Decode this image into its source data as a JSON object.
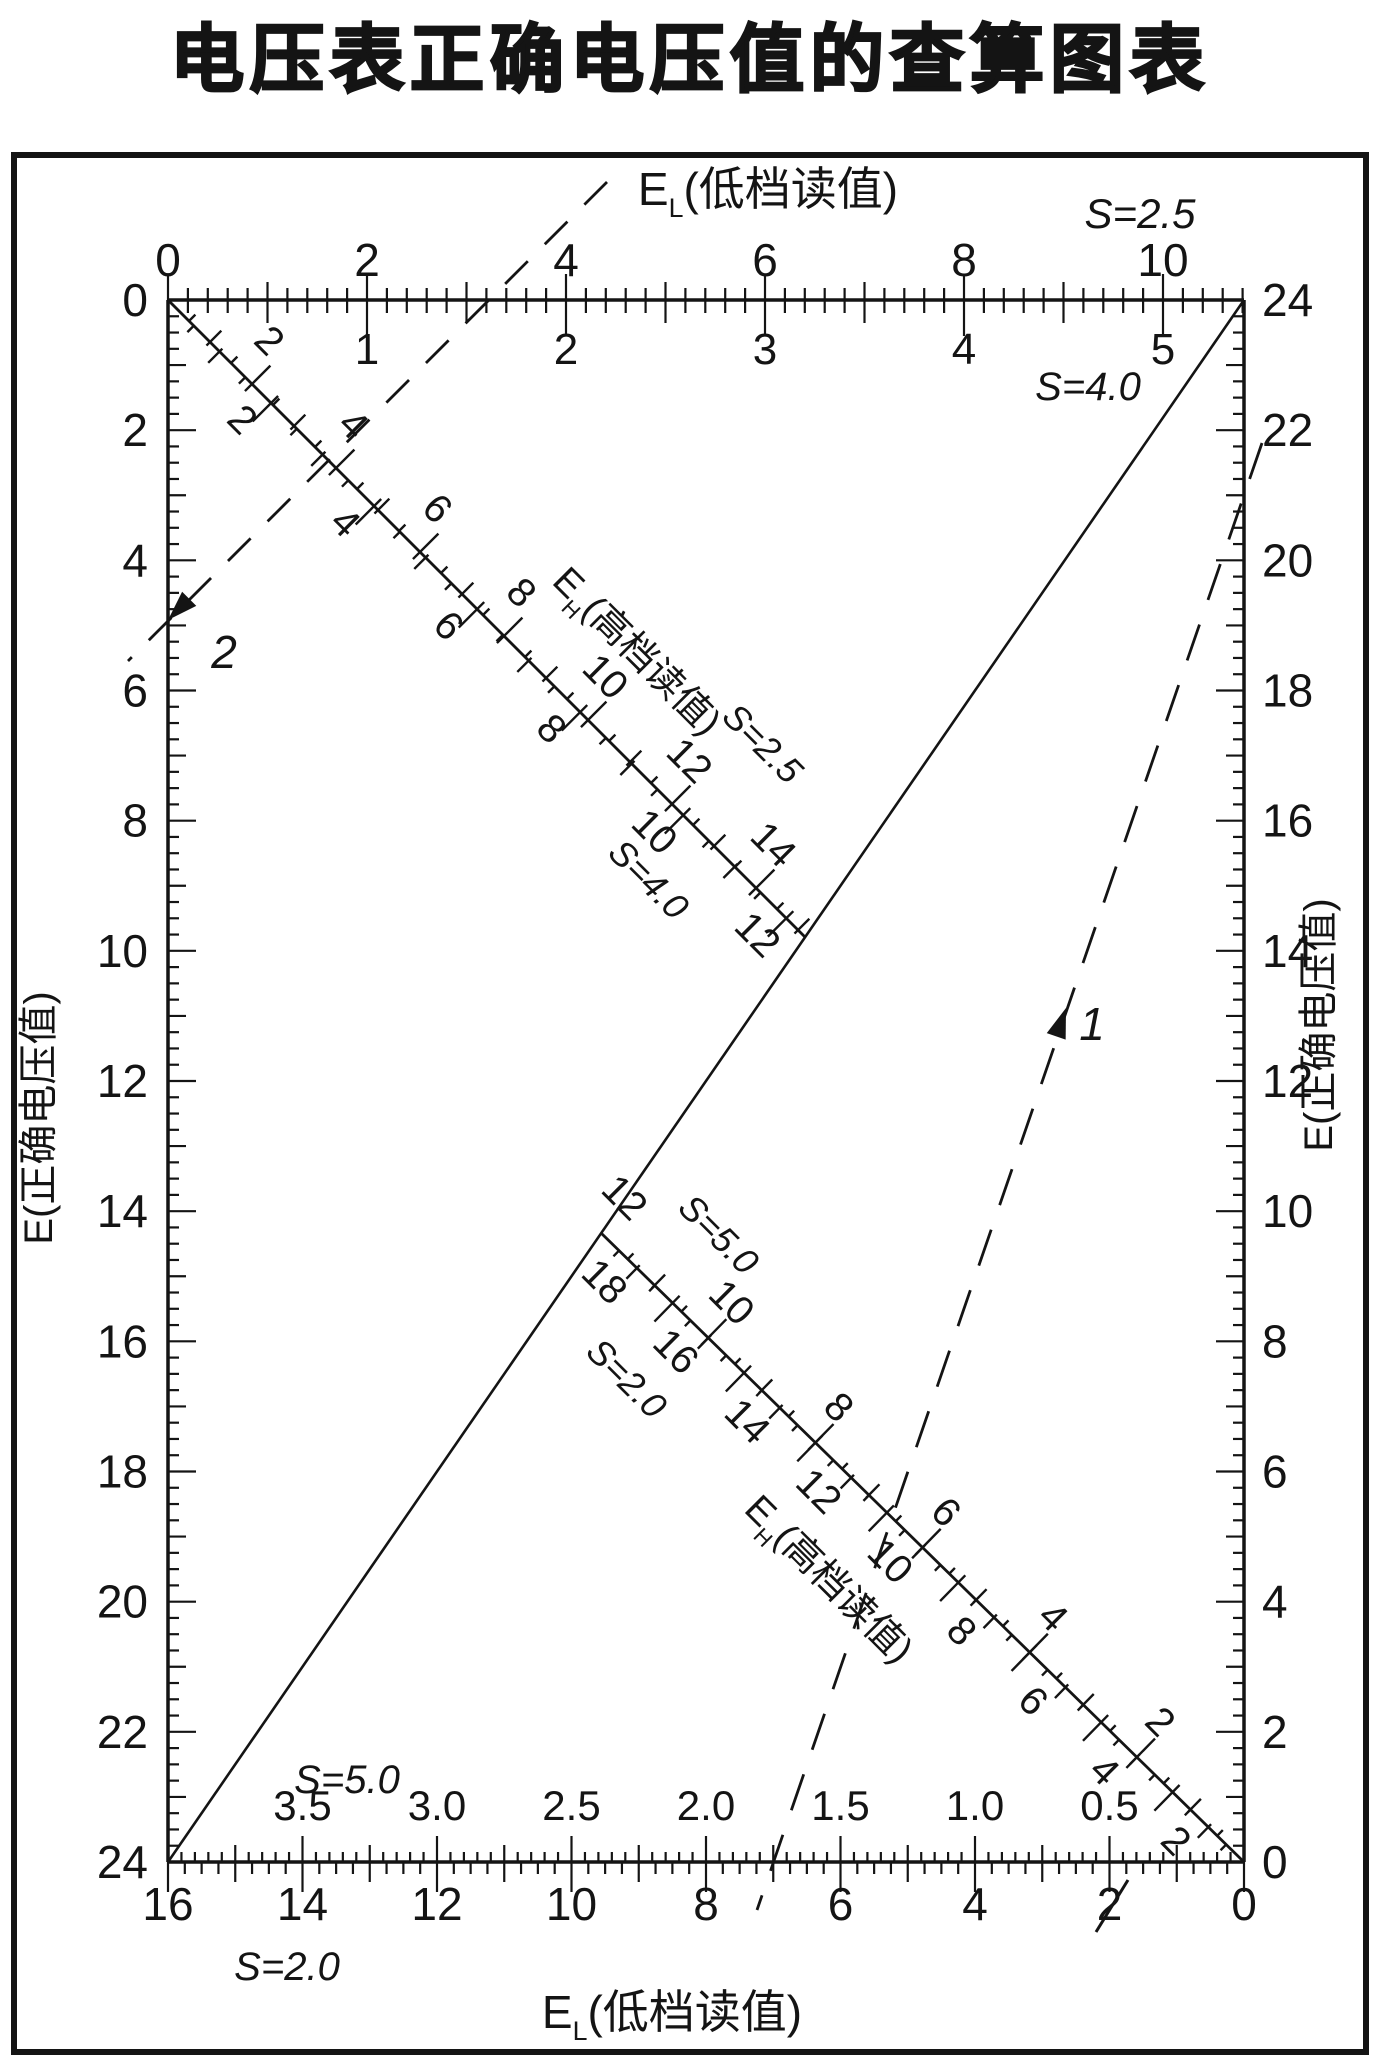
{
  "colors": {
    "ink": "#141414",
    "paper": "#ffffff"
  },
  "chart_data": {
    "type": "nomogram",
    "title": "电压表正确电压值的查算图表",
    "axes": {
      "top": {
        "title": {
          "base": "E",
          "sub": "L",
          "rest": "(低档读值)"
        },
        "scale_label": "S=2.5",
        "tick_labels": [
          "0",
          "2",
          "4",
          "6",
          "8",
          "10"
        ],
        "secondary_scale_label": "S=4.0",
        "secondary_tick_labels": [
          "1",
          "2",
          "3",
          "4",
          "5"
        ]
      },
      "bottom": {
        "title": {
          "base": "E",
          "sub": "L",
          "rest": "(低档读值)"
        },
        "scale_label": "S=2.0",
        "tick_labels": [
          "16",
          "14",
          "12",
          "10",
          "8",
          "6",
          "4",
          "2",
          "0"
        ],
        "secondary_scale_label": "S=5.0",
        "secondary_tick_labels": [
          "3.5",
          "3.0",
          "2.5",
          "2.0",
          "1.5",
          "1.0",
          "0.5"
        ]
      },
      "left": {
        "title": {
          "base": "E",
          "sub": "",
          "rest": "(正确电压值)"
        },
        "range": [
          0,
          24
        ],
        "tick_labels": [
          "0",
          "2",
          "4",
          "6",
          "8",
          "10",
          "12",
          "14",
          "16",
          "18",
          "20",
          "22",
          "24"
        ]
      },
      "right": {
        "title": {
          "base": "E",
          "sub": "",
          "rest": "(正确电压值)"
        },
        "range": [
          24,
          0
        ],
        "tick_labels": [
          "24",
          "22",
          "20",
          "18",
          "16",
          "14",
          "12",
          "10",
          "8",
          "6",
          "4",
          "2",
          "0"
        ]
      }
    },
    "diagonal_scales": [
      {
        "id": "upper",
        "title": {
          "base": "E",
          "sub": "H",
          "rest": "(高档读值)"
        },
        "above": {
          "scale_label": "S=2.5",
          "tick_labels": [
            "2",
            "4",
            "6",
            "8",
            "10",
            "12",
            "14"
          ]
        },
        "below": {
          "scale_label": "S=4.0",
          "tick_labels": [
            "2",
            "4",
            "6",
            "8",
            "10",
            "12"
          ]
        }
      },
      {
        "id": "lower",
        "title": {
          "base": "E",
          "sub": "H",
          "rest": "(高档读值)"
        },
        "above": {
          "scale_label": "S=5.0",
          "tick_labels": [
            "12",
            "10",
            "8",
            "6",
            "4",
            "2"
          ]
        },
        "below": {
          "scale_label": "S=2.0",
          "tick_labels": [
            "18",
            "16",
            "14",
            "12",
            "10",
            "8",
            "6",
            "4",
            "2"
          ]
        }
      }
    ],
    "reference_lines": [
      {
        "id": "main-diagonal",
        "style": "solid",
        "label": ""
      },
      {
        "id": "example-1",
        "style": "dashed",
        "label": "1"
      },
      {
        "id": "example-2",
        "style": "dashed",
        "label": "2"
      }
    ]
  }
}
